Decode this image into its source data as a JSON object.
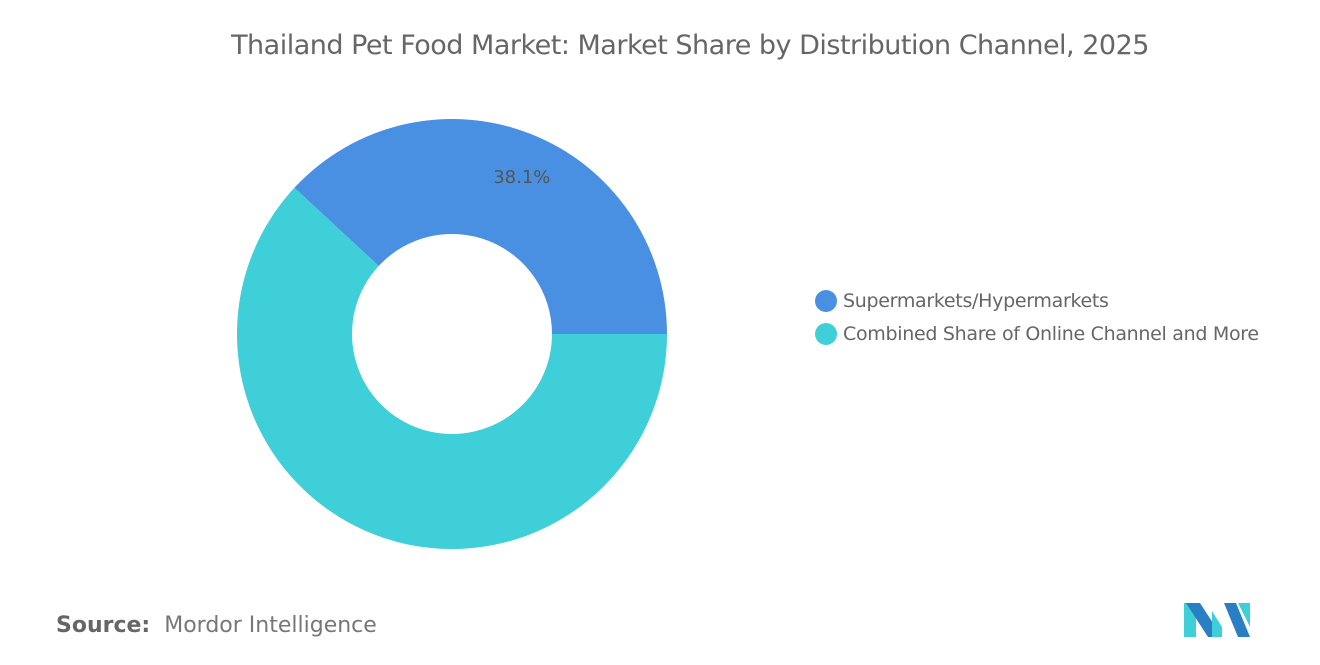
{
  "chart_data": {
    "type": "pie",
    "donut": true,
    "title": "Thailand Pet Food Market: Market Share by Distribution Channel, 2025",
    "series": [
      {
        "name": "Supermarkets/Hypermarkets",
        "value": 38.1,
        "label": "38.1%",
        "color": "#4a90e2"
      },
      {
        "name": "Combined Share of Online Channel and More",
        "value": 61.9,
        "label": "",
        "color": "#3ecfd8"
      }
    ],
    "legend_position": "right"
  },
  "source": {
    "label": "Source:",
    "value": "Mordor Intelligence"
  },
  "logo": {
    "text": "Mordor Intelligence",
    "colors": [
      "#2a7fc4",
      "#3ecfd8"
    ]
  }
}
